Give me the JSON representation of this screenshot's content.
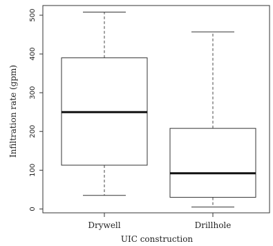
{
  "chart_data": {
    "type": "boxplot",
    "xlabel": "UIC construction",
    "ylabel": "Infiltration rate (gpm)",
    "categories": [
      "Drywell",
      "Drillhole"
    ],
    "boxes": [
      {
        "min": 35,
        "q1": 113,
        "median": 250,
        "q3": 390,
        "max": 508
      },
      {
        "min": 5,
        "q1": 30,
        "median": 92,
        "q3": 208,
        "max": 457
      }
    ],
    "ylim": [
      -10,
      525
    ],
    "yticks": [
      0,
      100,
      200,
      300,
      400,
      500
    ],
    "ytick_labels": [
      "0",
      "100",
      "200",
      "300",
      "400",
      "500"
    ],
    "grid": false,
    "colors": {
      "box_stroke": "#333333",
      "median_stroke": "#111111",
      "whisker_stroke": "#444444",
      "axis_stroke": "#333333"
    }
  }
}
